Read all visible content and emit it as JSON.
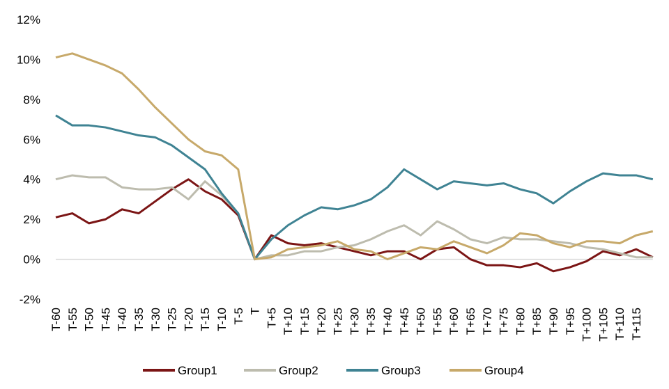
{
  "chart_data": {
    "type": "line",
    "categories": [
      "T-60",
      "T-55",
      "T-50",
      "T-45",
      "T-40",
      "T-35",
      "T-30",
      "T-25",
      "T-20",
      "T-15",
      "T-10",
      "T-5",
      "T",
      "T+5",
      "T+10",
      "T+15",
      "T+20",
      "T+25",
      "T+30",
      "T+35",
      "T+40",
      "T+45",
      "T+50",
      "T+55",
      "T+60",
      "T+65",
      "T+70",
      "T+75",
      "T+80",
      "T+85",
      "T+90",
      "T+95",
      "T+100",
      "T+105",
      "T+110",
      "T+115",
      null
    ],
    "series": [
      {
        "name": "Group1",
        "color": "#7b1515",
        "values": [
          2.1,
          2.3,
          1.8,
          2.0,
          2.5,
          2.3,
          2.9,
          3.5,
          4.0,
          3.4,
          3.0,
          2.2,
          0.0,
          1.2,
          0.8,
          0.7,
          0.8,
          0.6,
          0.4,
          0.2,
          0.4,
          0.4,
          0.0,
          0.5,
          0.6,
          0.0,
          -0.3,
          -0.3,
          -0.4,
          -0.2,
          -0.6,
          -0.4,
          -0.1,
          0.4,
          0.2,
          0.5,
          0.1
        ]
      },
      {
        "name": "Group2",
        "color": "#bdbcae",
        "values": [
          4.0,
          4.2,
          4.1,
          4.1,
          3.6,
          3.5,
          3.5,
          3.6,
          3.0,
          3.9,
          3.2,
          2.3,
          0.0,
          0.2,
          0.2,
          0.4,
          0.4,
          0.6,
          0.7,
          1.0,
          1.4,
          1.7,
          1.2,
          1.9,
          1.5,
          1.0,
          0.8,
          1.1,
          1.0,
          1.0,
          0.9,
          0.8,
          0.6,
          0.5,
          0.3,
          0.1,
          0.1
        ]
      },
      {
        "name": "Group3",
        "color": "#3f8393",
        "values": [
          7.2,
          6.7,
          6.7,
          6.6,
          6.4,
          6.2,
          6.1,
          5.7,
          5.1,
          4.5,
          3.3,
          2.3,
          0.0,
          1.0,
          1.7,
          2.2,
          2.6,
          2.5,
          2.7,
          3.0,
          3.6,
          4.5,
          4.0,
          3.5,
          3.9,
          3.8,
          3.7,
          3.8,
          3.5,
          3.3,
          2.8,
          3.4,
          3.9,
          4.3,
          4.2,
          4.2,
          4.0
        ]
      },
      {
        "name": "Group4",
        "color": "#c7a96a",
        "values": [
          10.1,
          10.3,
          10.0,
          9.7,
          9.3,
          8.5,
          7.6,
          6.8,
          6.0,
          5.4,
          5.2,
          4.5,
          0.0,
          0.1,
          0.5,
          0.6,
          0.7,
          0.9,
          0.5,
          0.4,
          0.0,
          0.3,
          0.6,
          0.5,
          0.9,
          0.6,
          0.3,
          0.7,
          1.3,
          1.2,
          0.8,
          0.6,
          0.9,
          0.9,
          0.8,
          1.2,
          1.4
        ]
      }
    ],
    "ylim": [
      -2,
      12
    ],
    "yticks": [
      {
        "value": -2,
        "label": "-2%"
      },
      {
        "value": 0,
        "label": "0%"
      },
      {
        "value": 2,
        "label": "2%"
      },
      {
        "value": 4,
        "label": "4%"
      },
      {
        "value": 6,
        "label": "6%"
      },
      {
        "value": 8,
        "label": "8%"
      },
      {
        "value": 10,
        "label": "10%"
      },
      {
        "value": 12,
        "label": "12%"
      }
    ],
    "legend": "bottom"
  }
}
